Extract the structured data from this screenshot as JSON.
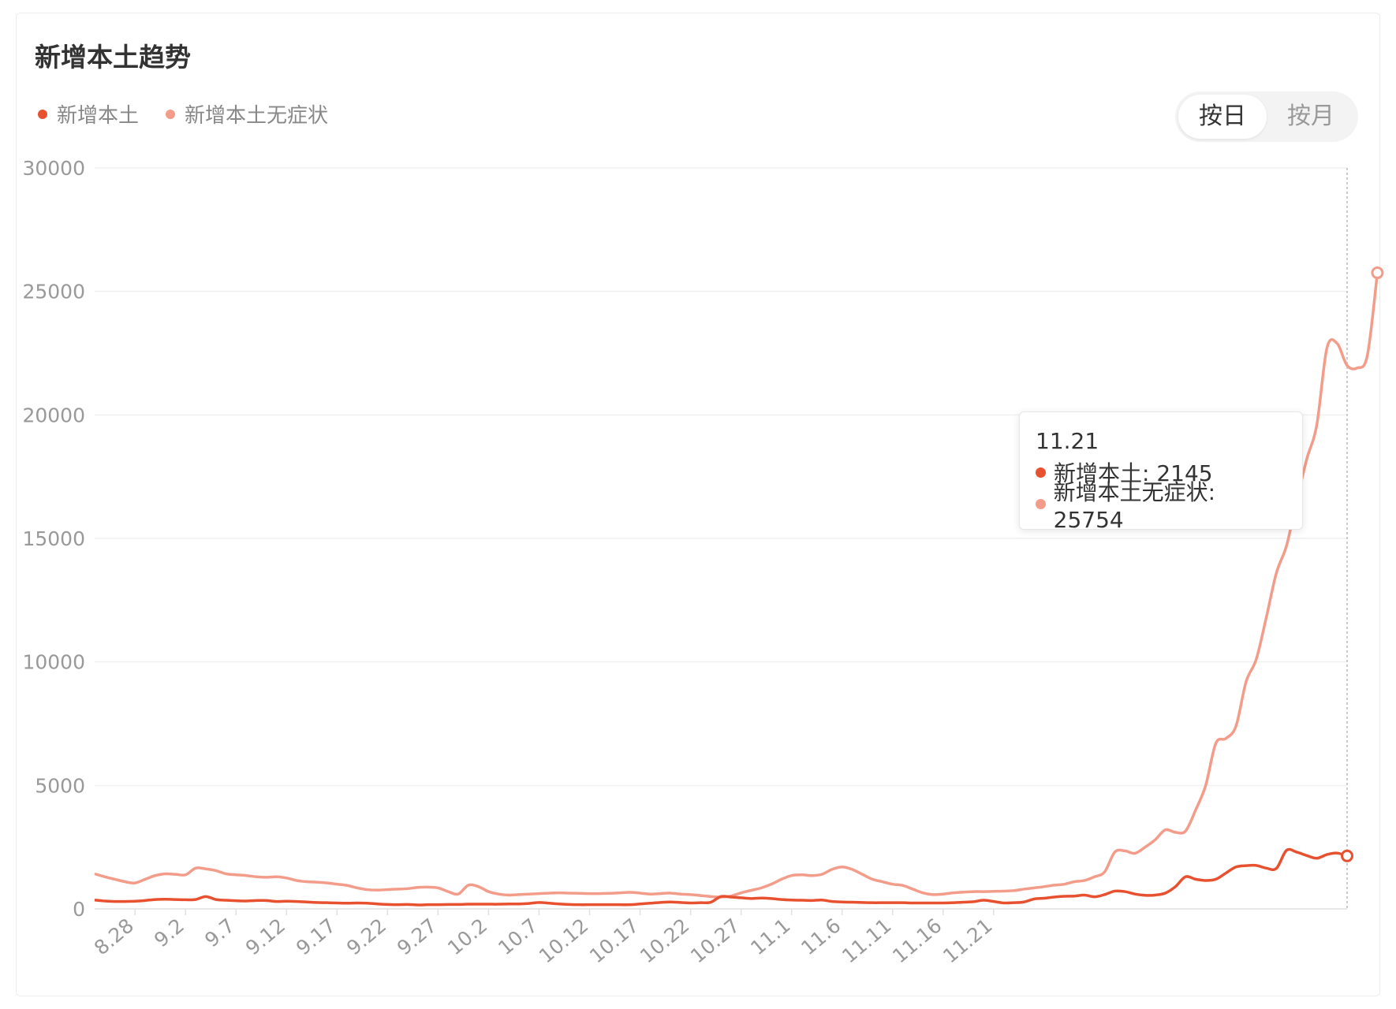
{
  "title": "新增本土趋势",
  "legend": [
    {
      "label": "新增本土",
      "color": "#e8512f"
    },
    {
      "label": "新增本土无症状",
      "color": "#f39c8a"
    }
  ],
  "toggle": {
    "day_label": "按日",
    "month_label": "按月",
    "active": "day"
  },
  "tooltip": {
    "date": "11.21",
    "series1_text": "新增本土: 2145",
    "series2_text": "新增本土无症状: 25754"
  },
  "chart_data": {
    "type": "line",
    "title": "新增本土趋势",
    "xlabel": "",
    "ylabel": "",
    "ylim": [
      0,
      30000
    ],
    "yticks": [
      0,
      5000,
      10000,
      15000,
      20000,
      25000,
      30000
    ],
    "ytick_labels": [
      "0",
      "5000",
      "10000",
      "15000",
      "20000",
      "25000",
      "30000"
    ],
    "x_range": [
      "8.24",
      "11.21"
    ],
    "xtick_labels": [
      "8.28",
      "9.2",
      "9.7",
      "9.12",
      "9.17",
      "9.22",
      "9.27",
      "10.2",
      "10.7",
      "10.12",
      "10.17",
      "10.22",
      "10.27",
      "11.1",
      "11.6",
      "11.11",
      "11.16",
      "11.21"
    ],
    "grid": true,
    "legend_position": "top-left",
    "series": [
      {
        "name": "新增本土",
        "color": "#e8512f",
        "values": [
          360,
          320,
          300,
          300,
          310,
          340,
          380,
          390,
          380,
          370,
          380,
          500,
          380,
          350,
          330,
          320,
          340,
          340,
          300,
          310,
          300,
          280,
          260,
          250,
          240,
          230,
          240,
          230,
          200,
          180,
          170,
          180,
          160,
          170,
          170,
          180,
          180,
          190,
          190,
          190,
          190,
          200,
          200,
          220,
          260,
          230,
          200,
          180,
          170,
          170,
          170,
          170,
          170,
          170,
          200,
          230,
          260,
          280,
          260,
          240,
          250,
          270,
          500,
          480,
          450,
          420,
          440,
          420,
          380,
          360,
          350,
          340,
          360,
          300,
          280,
          270,
          260,
          250,
          250,
          250,
          250,
          240,
          240,
          240,
          240,
          250,
          270,
          290,
          350,
          300,
          240,
          250,
          280,
          400,
          430,
          480,
          510,
          520,
          560,
          490,
          580,
          720,
          700,
          600,
          550,
          560,
          640,
          900,
          1300,
          1200,
          1150,
          1200,
          1450,
          1700,
          1750,
          1760,
          1650,
          1640,
          2370,
          2300,
          2160,
          2050,
          2200,
          2260,
          2145
        ]
      },
      {
        "name": "新增本土无症状",
        "color": "#f39c8a",
        "values": [
          1420,
          1300,
          1200,
          1100,
          1050,
          1200,
          1350,
          1420,
          1400,
          1380,
          1650,
          1620,
          1550,
          1420,
          1380,
          1350,
          1300,
          1280,
          1300,
          1250,
          1150,
          1100,
          1080,
          1050,
          1000,
          950,
          850,
          780,
          760,
          780,
          800,
          820,
          870,
          880,
          850,
          700,
          600,
          960,
          900,
          700,
          600,
          560,
          580,
          600,
          620,
          640,
          650,
          640,
          630,
          620,
          620,
          630,
          650,
          670,
          640,
          600,
          620,
          640,
          600,
          580,
          540,
          500,
          480,
          520,
          650,
          750,
          850,
          1000,
          1200,
          1350,
          1380,
          1350,
          1400,
          1600,
          1700,
          1600,
          1400,
          1200,
          1100,
          1000,
          950,
          800,
          650,
          580,
          600,
          650,
          680,
          700,
          700,
          710,
          720,
          740,
          800,
          850,
          900,
          960,
          1000,
          1100,
          1150,
          1300,
          1500,
          2300,
          2350,
          2250,
          2500,
          2800,
          3200,
          3100,
          3150,
          4000,
          5000,
          6700,
          6900,
          7400,
          9200,
          10100,
          11800,
          13600,
          14700,
          16500,
          18200,
          19600,
          22700,
          22900,
          22000,
          21900,
          22400,
          25754
        ]
      }
    ]
  }
}
